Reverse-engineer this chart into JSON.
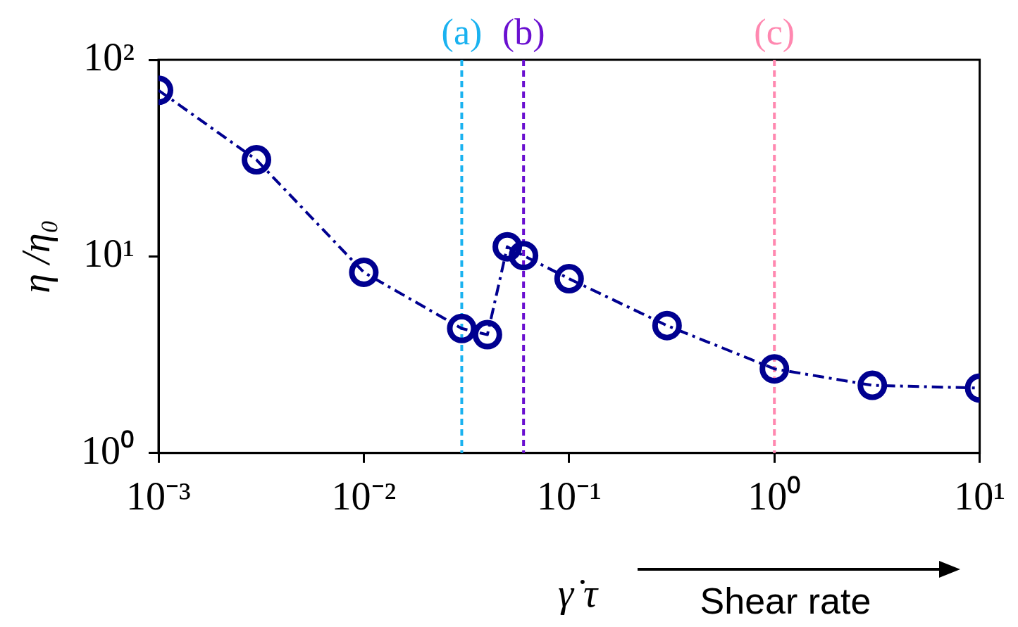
{
  "chart_data": {
    "type": "line",
    "xlabel": "γ̇ τ",
    "ylabel": "η /η₀",
    "log": "xy",
    "grid": false,
    "legend": false,
    "marker": "circle",
    "line_style": "dashed",
    "x": [
      0.001,
      0.003,
      0.01,
      0.03,
      0.04,
      0.05,
      0.06,
      0.1,
      0.3,
      1,
      3,
      10
    ],
    "series": [
      {
        "color": "#000090",
        "values": [
          70,
          31,
          8.3,
          4.3,
          4.0,
          11.2,
          10.1,
          7.7,
          4.45,
          2.68,
          2.21,
          2.14
        ]
      }
    ],
    "xlim": [
      0.001,
      10
    ],
    "ylim": [
      1,
      100
    ],
    "xticks": [
      {
        "value": 0.001,
        "label": "10⁻³"
      },
      {
        "value": 0.01,
        "label": "10⁻²"
      },
      {
        "value": 0.1,
        "label": "10⁻¹"
      },
      {
        "value": 1,
        "label": "10⁰"
      },
      {
        "value": 10,
        "label": "10¹"
      }
    ],
    "yticks": [
      {
        "value": 1,
        "label": "10⁰"
      },
      {
        "value": 10,
        "label": "10¹"
      },
      {
        "value": 100,
        "label": "10²"
      }
    ],
    "ref_lines": [
      {
        "axis": "x",
        "value": 0.03,
        "label": "(a)",
        "color": "#1ab2f0",
        "line_style": "dashed"
      },
      {
        "axis": "x",
        "value": 0.06,
        "label": "(b)",
        "color": "#6a10d0",
        "line_style": "dashed"
      },
      {
        "axis": "x",
        "value": 1,
        "label": "(c)",
        "color": "#ff88b0",
        "line_style": "dashed"
      }
    ],
    "annotations": [
      "Shear rate"
    ]
  }
}
